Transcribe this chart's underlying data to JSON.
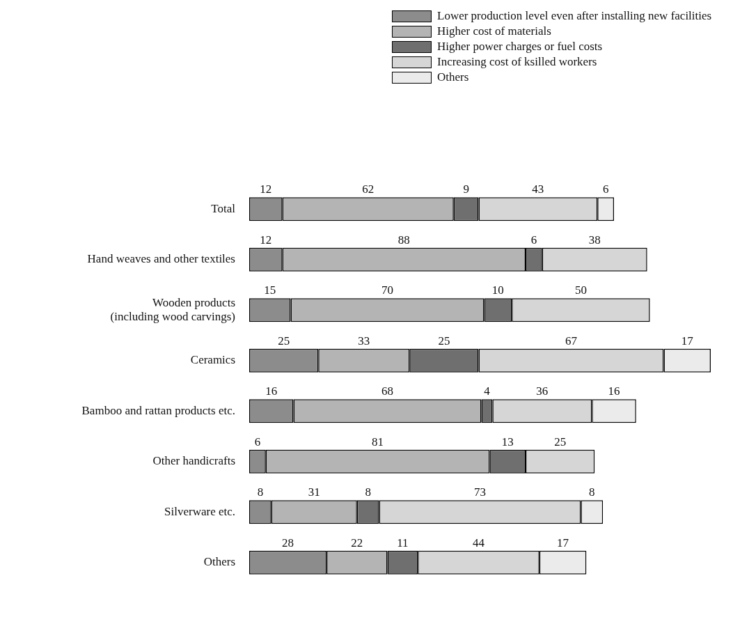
{
  "chart_data": {
    "type": "bar",
    "orientation": "horizontal",
    "stacked": true,
    "legend": "top right",
    "data_labels": true,
    "categories": [
      "Total",
      "Hand weaves and other textiles",
      "Wooden products\n(including wood carvings)",
      "Ceramics",
      "Bamboo and rattan products etc.",
      "Other handicrafts",
      "Silverware etc.",
      "Others"
    ],
    "series": [
      {
        "name": "Lower production level even after installing new facilities",
        "color": "#8c8c8c",
        "values": [
          12,
          12,
          15,
          25,
          16,
          6,
          8,
          28
        ]
      },
      {
        "name": "Higher cost of materials",
        "color": "#b4b4b4",
        "values": [
          62,
          88,
          70,
          33,
          68,
          81,
          31,
          22
        ]
      },
      {
        "name": "Higher power charges or fuel costs",
        "color": "#6f6f6f",
        "values": [
          9,
          6,
          10,
          25,
          4,
          13,
          8,
          11
        ]
      },
      {
        "name": "Increasing cost of ksilled workers",
        "color": "#d6d6d6",
        "values": [
          43,
          38,
          50,
          67,
          36,
          25,
          73,
          44
        ]
      },
      {
        "name": "Others",
        "color": "#ebebeb",
        "values": [
          6,
          null,
          null,
          17,
          16,
          null,
          8,
          17
        ]
      }
    ]
  }
}
